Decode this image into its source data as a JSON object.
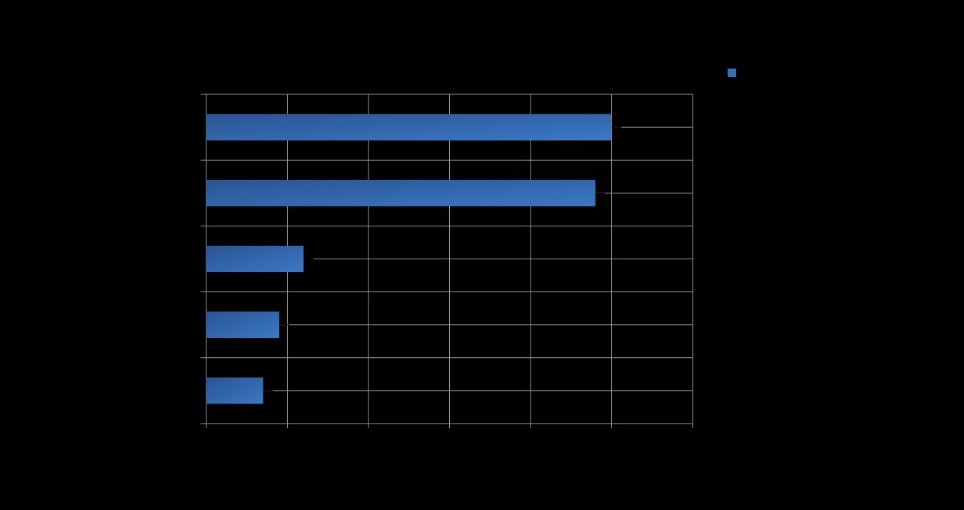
{
  "chart_data": {
    "type": "bar",
    "orientation": "horizontal",
    "title": "",
    "xlabel": "",
    "ylabel": "",
    "categories": [
      "",
      "",
      "",
      "",
      ""
    ],
    "series": [
      {
        "name": "",
        "values": [
          5.0,
          4.8,
          1.2,
          0.9,
          0.7
        ],
        "data_labels": [
          "",
          "",
          "",
          "",
          ""
        ]
      }
    ],
    "xlim": [
      0,
      6
    ],
    "x_ticks": [
      0,
      1,
      2,
      3,
      4,
      5,
      6
    ],
    "x_tick_labels": [
      "",
      "",
      "",
      "",
      "",
      "",
      ""
    ],
    "grid": true,
    "legend_position": "top-right",
    "colors": {
      "background": "#000000",
      "bar_start": "#2b5492",
      "bar_end": "#3a78c6",
      "gridline": "#9a9a9a",
      "legend_swatch": "#3a6db3"
    }
  }
}
